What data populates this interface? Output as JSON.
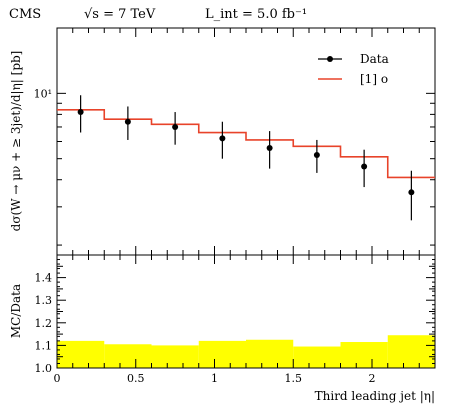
{
  "header": {
    "experiment": "CMS",
    "energy": "√s = 7 TeV",
    "lumi": "L_int = 5.0 fb⁻¹"
  },
  "chart_data": [
    {
      "type": "line",
      "role": "main",
      "ylabel": "dσ(W → μν + ≥ 3jet)/d|η| [pb]",
      "yscale": "log",
      "ylim": [
        1.8,
        20
      ],
      "yticks": [
        {
          "value": 10,
          "label": "10¹"
        }
      ],
      "xlim": [
        0,
        2.4
      ],
      "bin_edges": [
        0,
        0.3,
        0.6,
        0.9,
        1.2,
        1.5,
        1.8,
        2.1,
        2.4
      ],
      "legend_position": "top-right",
      "series": [
        {
          "name": "Data",
          "kind": "points-with-errors",
          "color": "#000000",
          "x": [
            0.15,
            0.45,
            0.75,
            1.05,
            1.35,
            1.65,
            1.95,
            2.25
          ],
          "y": [
            8.2,
            7.4,
            7.0,
            6.2,
            5.6,
            5.2,
            4.6,
            3.5
          ],
          "yerr_low": [
            1.6,
            1.3,
            1.2,
            1.2,
            1.1,
            0.9,
            0.9,
            0.9
          ],
          "yerr_high": [
            1.6,
            1.3,
            1.2,
            1.2,
            1.1,
            0.9,
            0.9,
            0.9
          ]
        },
        {
          "name": "[1] o",
          "kind": "histogram",
          "color": "#e8432a",
          "values": [
            8.4,
            7.6,
            7.2,
            6.6,
            6.1,
            5.7,
            5.1,
            4.1
          ]
        }
      ]
    },
    {
      "type": "area",
      "role": "ratio",
      "ylabel": "MC/Data",
      "ylim": [
        1.0,
        1.5
      ],
      "yticks": [
        1.0,
        1.1,
        1.2,
        1.3,
        1.4
      ],
      "ytick_labels": [
        "1.0",
        "1.1",
        "1.2",
        "1.3",
        "1.4"
      ],
      "xlim": [
        0,
        2.4
      ],
      "xlabel": "Third leading jet |η|",
      "xticks": [
        0,
        0.5,
        1,
        1.5,
        2
      ],
      "xtick_labels": [
        "0",
        "0.5",
        "1",
        "1.5",
        "2"
      ],
      "bin_edges": [
        0,
        0.3,
        0.6,
        0.9,
        1.2,
        1.5,
        1.8,
        2.1,
        2.4
      ],
      "band_color": "#ffff00",
      "band_upper": [
        1.12,
        1.105,
        1.1,
        1.12,
        1.125,
        1.095,
        1.115,
        1.145
      ],
      "band_lower": [
        1.0,
        1.0,
        1.0,
        1.0,
        1.0,
        1.0,
        1.0,
        1.0
      ]
    }
  ]
}
